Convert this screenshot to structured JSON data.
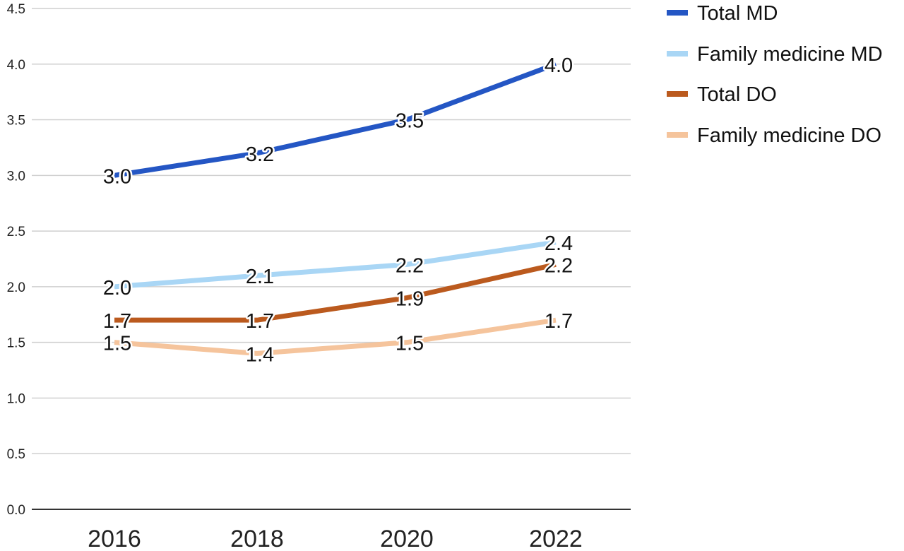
{
  "chart_data": {
    "type": "line",
    "categories": [
      "2016",
      "2018",
      "2020",
      "2022"
    ],
    "series": [
      {
        "name": "Total MD",
        "color": "#2456c4",
        "values": [
          3.0,
          3.2,
          3.5,
          4.0
        ],
        "labels": [
          "3.0",
          "3.2",
          "3.5",
          "4.0"
        ]
      },
      {
        "name": "Family medicine MD",
        "color": "#a9d6f5",
        "values": [
          2.0,
          2.1,
          2.2,
          2.4
        ],
        "labels": [
          "2.0",
          "2.1",
          "2.2",
          "2.4"
        ]
      },
      {
        "name": "Total DO",
        "color": "#bb5a1e",
        "values": [
          1.7,
          1.7,
          1.9,
          2.2
        ],
        "labels": [
          "1.7",
          "1.7",
          "1.9",
          "2.2"
        ]
      },
      {
        "name": "Family medicine DO",
        "color": "#f5c49c",
        "values": [
          1.5,
          1.4,
          1.5,
          1.7
        ],
        "labels": [
          "1.5",
          "1.4",
          "1.5",
          "1.7"
        ]
      }
    ],
    "yticks": [
      "0.0",
      "0.5",
      "1.0",
      "1.5",
      "2.0",
      "2.5",
      "3.0",
      "3.5",
      "4.0",
      "4.5"
    ],
    "ylim": [
      0,
      4.5
    ],
    "grid": true,
    "legend": "right",
    "title": "",
    "xlabel": "",
    "ylabel": ""
  }
}
